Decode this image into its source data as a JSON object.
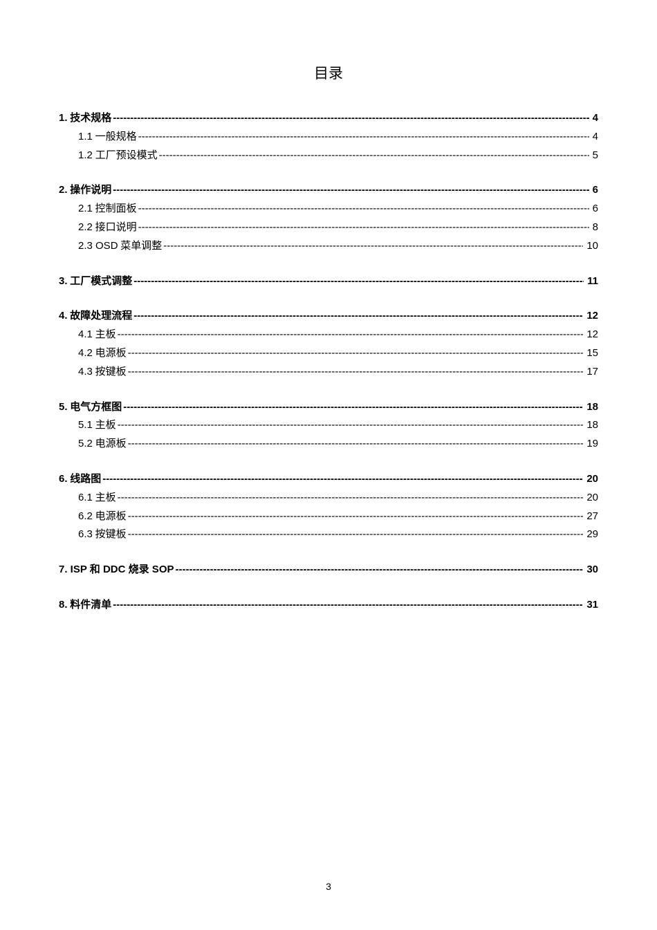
{
  "title": "目录",
  "pageNumber": "3",
  "sections": [
    {
      "heading": {
        "num": "1.",
        "text": " 技术规格 ",
        "page": " 4"
      },
      "items": [
        {
          "num": "1.1",
          "text": " 一般规格 ",
          "page": " 4"
        },
        {
          "num": "1.2",
          "text": " 工厂预设模式 ",
          "page": " 5"
        }
      ]
    },
    {
      "heading": {
        "num": "2.",
        "text": " 操作说明 ",
        "page": " 6"
      },
      "items": [
        {
          "num": "2.1",
          "text": " 控制面板",
          "page": " 6"
        },
        {
          "num": "2.2",
          "text": " 接口说明",
          "page": " 8"
        },
        {
          "num": "2.3 OSD",
          "text": " 菜单调整 ",
          "page": " 10"
        }
      ]
    },
    {
      "heading": {
        "num": "3.",
        "text": " 工厂模式调整 ",
        "page": " 11"
      },
      "items": []
    },
    {
      "heading": {
        "num": "4.",
        "text": " 故障处理流程 ",
        "page": " 12"
      },
      "items": [
        {
          "num": "4.1",
          "text": " 主板",
          "page": " 12"
        },
        {
          "num": "4.2",
          "text": " 电源板",
          "page": " 15"
        },
        {
          "num": "4.3",
          "text": " 按键板",
          "page": " 17"
        }
      ]
    },
    {
      "heading": {
        "num": "5.",
        "text": " 电气方框图 ",
        "page": " 18"
      },
      "items": [
        {
          "num": "5.1",
          "text": " 主板",
          "page": " 18"
        },
        {
          "num": "5.2",
          "text": " 电源板",
          "page": " 19"
        }
      ]
    },
    {
      "heading": {
        "num": "6.",
        "text": " 线路图 ",
        "page": " 20"
      },
      "items": [
        {
          "num": "6.1",
          "text": " 主板",
          "page": " 20"
        },
        {
          "num": "6.2",
          "text": " 电源板",
          "page": " 27"
        },
        {
          "num": "6.3",
          "text": " 按键板",
          "page": " 29"
        }
      ]
    },
    {
      "heading": {
        "num": "7. ISP ",
        "text": "和",
        "num2": " DDC ",
        "text2": "烧录",
        "num3": " SOP ",
        "page": " 30"
      },
      "items": []
    },
    {
      "heading": {
        "num": "8.",
        "text": " 料件清单 ",
        "page": " 31"
      },
      "items": []
    }
  ]
}
